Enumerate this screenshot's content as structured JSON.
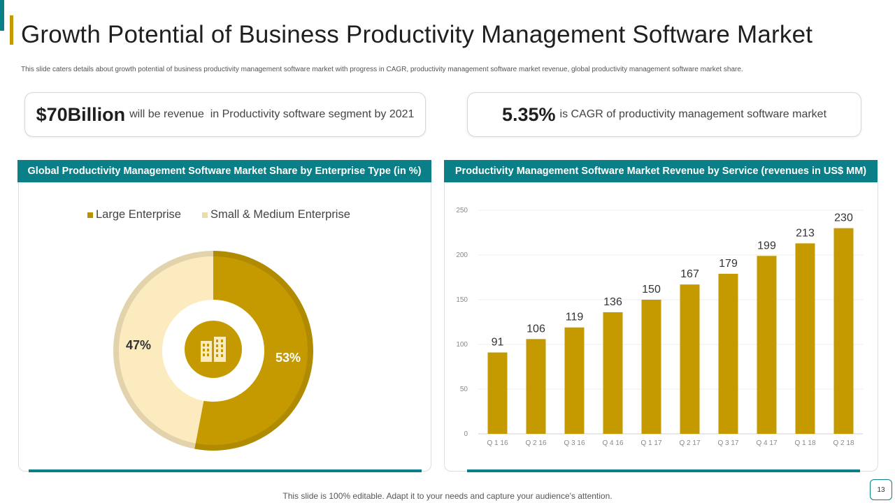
{
  "slide": {
    "title": "Growth Potential of Business Productivity Management Software Market",
    "subtitle": "This slide caters details about growth potential of business productivity management software market with progress in CAGR, productivity management software market revenue, global productivity management software market share.",
    "footer": "This slide is 100% editable. Adapt it to your needs and capture your audience's attention.",
    "page_number": "13"
  },
  "kpis": {
    "revenue": {
      "value": "$70Billion",
      "text": "will be revenue  in Productivity software segment by 2021"
    },
    "cagr": {
      "value": "5.35%",
      "text": "is CAGR of productivity management software market"
    }
  },
  "panels": {
    "left_title": "Global Productivity Management Software Market Share by Enterprise Type (in %)",
    "right_title": "Productivity Management Software Market Revenue by Service (revenues in US$ MM)"
  },
  "icons": {
    "donut_center": "buildings-icon"
  },
  "colors": {
    "teal": "#0b7f87",
    "gold": "#c49a00",
    "light": "#fdebc0"
  },
  "chart_data": [
    {
      "type": "pie",
      "title": "Global Productivity Management Software Market Share by Enterprise Type (in %)",
      "categories": [
        "Large Enterprise",
        "Small & Medium Enterprise"
      ],
      "values": [
        53,
        47
      ],
      "labels": [
        "53%",
        "47%"
      ],
      "colors": [
        "#c49a00",
        "#fdebc0"
      ],
      "legend": "top"
    },
    {
      "type": "bar",
      "title": "Productivity Management Software Market Revenue by Service (revenues in US$ MM)",
      "categories": [
        "Q 1 16",
        "Q 2 16",
        "Q 3 16",
        "Q 4 16",
        "Q 1 17",
        "Q 2 17",
        "Q 3 17",
        "Q 4 17",
        "Q 1 18",
        "Q 2 18"
      ],
      "values": [
        91,
        106,
        119,
        136,
        150,
        167,
        179,
        199,
        213,
        230
      ],
      "ylim": [
        0,
        250
      ],
      "yticks": [
        0,
        50,
        100,
        150,
        200,
        250
      ],
      "color": "#c49a00",
      "grid": true
    }
  ]
}
